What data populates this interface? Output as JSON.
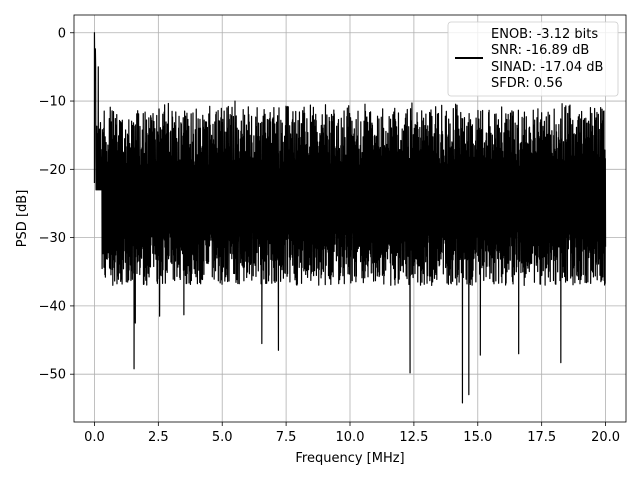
{
  "chart_data": {
    "type": "line",
    "title": "",
    "xlabel": "Frequency [MHz]",
    "ylabel": "PSD [dB]",
    "xlim": [
      -0.8,
      20.8
    ],
    "ylim": [
      -57,
      2.6
    ],
    "x_ticks": [
      0.0,
      2.5,
      5.0,
      7.5,
      10.0,
      12.5,
      15.0,
      17.5,
      20.0
    ],
    "x_tick_labels": [
      "0.0",
      "2.5",
      "5.0",
      "7.5",
      "10.0",
      "12.5",
      "15.0",
      "17.5",
      "20.0"
    ],
    "y_ticks": [
      0,
      -10,
      -20,
      -30,
      -40,
      -50
    ],
    "y_tick_labels": [
      "0",
      "−10",
      "−20",
      "−30",
      "−40",
      "−50"
    ],
    "grid": true,
    "legend_position": "top-right",
    "legend_entries": [
      "ENOB: -3.12 bits",
      "SNR: -16.89 dB",
      "SINAD: -17.04 dB",
      "SFDR: 0.56"
    ],
    "series": [
      {
        "color": "#000000",
        "noise_floor_db": [
          -32,
          -12
        ],
        "min_peaks": [
          {
            "x": 1.55,
            "y": -49.2
          },
          {
            "x": 1.6,
            "y": -42.5
          },
          {
            "x": 2.55,
            "y": -41.5
          },
          {
            "x": 3.5,
            "y": -41.3
          },
          {
            "x": 6.55,
            "y": -45.5
          },
          {
            "x": 7.2,
            "y": -46.5
          },
          {
            "x": 12.35,
            "y": -49.8
          },
          {
            "x": 14.4,
            "y": -54.2
          },
          {
            "x": 14.65,
            "y": -53.0
          },
          {
            "x": 15.1,
            "y": -47.2
          },
          {
            "x": 16.6,
            "y": -47.0
          },
          {
            "x": 18.25,
            "y": -48.3
          }
        ],
        "max_peaks": [
          {
            "x": 0.0,
            "y": 0.0
          },
          {
            "x": 0.15,
            "y": -5.0
          },
          {
            "x": 5.5,
            "y": -10.0
          },
          {
            "x": 8.45,
            "y": -10.6
          },
          {
            "x": 16.35,
            "y": -12.2
          }
        ]
      }
    ]
  }
}
